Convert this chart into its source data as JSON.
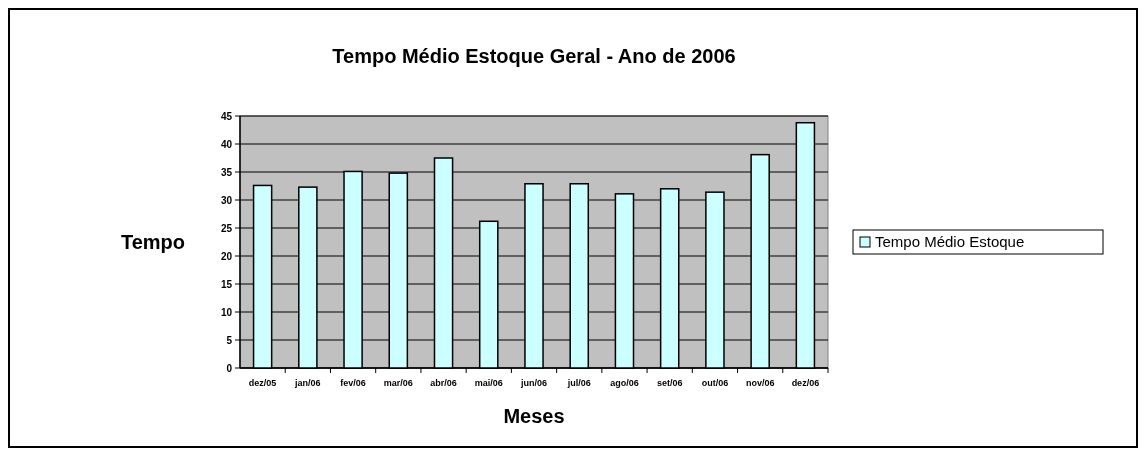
{
  "chart_data": {
    "type": "bar",
    "title": "Tempo Médio Estoque Geral - Ano de 2006",
    "xlabel": "Meses",
    "ylabel": "Tempo",
    "categories": [
      "dez/05",
      "jan/06",
      "fev/06",
      "mar/06",
      "abr/06",
      "mai/06",
      "jun/06",
      "jul/06",
      "ago/06",
      "set/06",
      "out/06",
      "nov/06",
      "dez/06"
    ],
    "series": [
      {
        "name": "Tempo Médio Estoque",
        "color": "#ccffff",
        "values": [
          32.6,
          32.3,
          35.1,
          34.8,
          37.5,
          26.2,
          32.9,
          32.9,
          31.1,
          32.0,
          31.4,
          38.1,
          43.8
        ]
      }
    ],
    "ylim": [
      0,
      45
    ],
    "yticks": [
      0,
      5,
      10,
      15,
      20,
      25,
      30,
      35,
      40,
      45
    ],
    "grid": "y",
    "legend": "right"
  }
}
